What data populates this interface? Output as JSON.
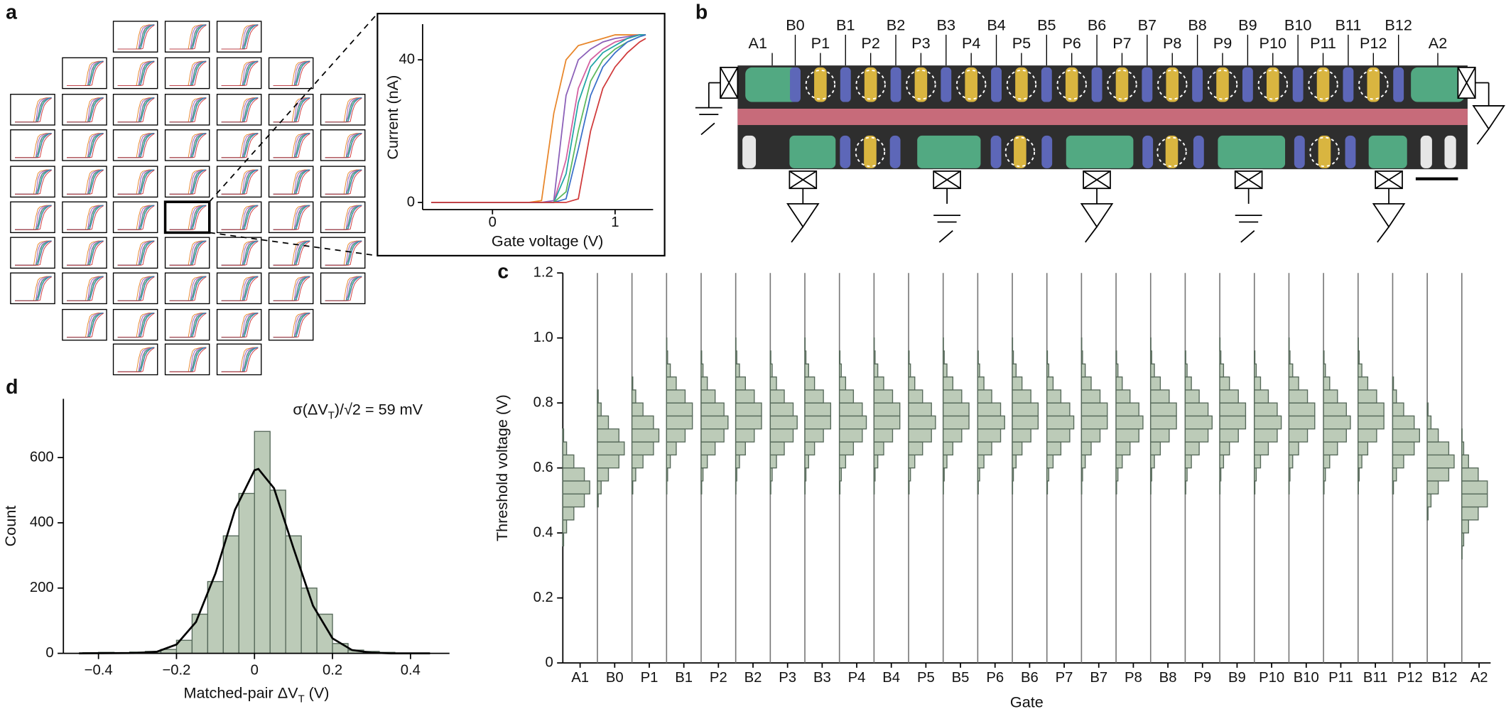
{
  "panel_labels": [
    "a",
    "b",
    "c",
    "d"
  ],
  "device": {
    "labels": [
      "A1",
      "B0",
      "P1",
      "B1",
      "P2",
      "B2",
      "P3",
      "B3",
      "P4",
      "B4",
      "P5",
      "B5",
      "P6",
      "B6",
      "P7",
      "B7",
      "P8",
      "B8",
      "P9",
      "B9",
      "P10",
      "B10",
      "P11",
      "B11",
      "P12",
      "B12",
      "A2"
    ]
  },
  "chart_data": [
    {
      "type": "line",
      "xlabel": "Gate voltage (V)",
      "ylabel": "Current (nA)",
      "x": [
        -0.5,
        0.3,
        0.4,
        0.5,
        0.6,
        0.7,
        0.8,
        0.9,
        1.0,
        1.1,
        1.2,
        1.25
      ],
      "series": [
        {
          "color": "#e8862a",
          "values": [
            0,
            0,
            0.5,
            25,
            40,
            44,
            45,
            46,
            47,
            47,
            47,
            47
          ]
        },
        {
          "color": "#8b5fb8",
          "values": [
            0,
            0,
            0,
            0.5,
            30,
            40,
            43,
            45,
            46,
            46.5,
            47,
            47
          ]
        },
        {
          "color": "#d45fa0",
          "values": [
            0,
            0,
            0,
            0,
            12,
            32,
            40,
            43,
            45,
            46,
            47,
            47
          ]
        },
        {
          "color": "#1fa5a5",
          "values": [
            0,
            0,
            0,
            0,
            8,
            28,
            38,
            42,
            44,
            46,
            47,
            47
          ]
        },
        {
          "color": "#5cb85c",
          "values": [
            0,
            0,
            0,
            0,
            3,
            20,
            34,
            40,
            43,
            45,
            46.5,
            47
          ]
        },
        {
          "color": "#3a6fc9",
          "values": [
            0,
            0,
            0,
            0,
            1,
            15,
            30,
            38,
            42,
            45,
            46.5,
            47
          ]
        },
        {
          "color": "#d0393a",
          "values": [
            0,
            0,
            0,
            0,
            0,
            1,
            20,
            32,
            38,
            42,
            45,
            46
          ]
        }
      ],
      "xlim": [
        -0.57,
        1.31
      ],
      "ylim": [
        -2,
        50
      ],
      "xticks": [
        0,
        1
      ],
      "yticks": [
        0,
        40
      ]
    },
    {
      "type": "histogram",
      "orientation": "horizontal",
      "xlabel": "Gate",
      "ylabel": "Threshold voltage (V)",
      "categories": [
        "A1",
        "B0",
        "P1",
        "B1",
        "P2",
        "B2",
        "P3",
        "B3",
        "P4",
        "B4",
        "P5",
        "B5",
        "P6",
        "B6",
        "P7",
        "B7",
        "P8",
        "B8",
        "P9",
        "B9",
        "P10",
        "B10",
        "P11",
        "B11",
        "P12",
        "B12",
        "A2"
      ],
      "bins": [
        0.32,
        0.36,
        0.4,
        0.44,
        0.48,
        0.52,
        0.56,
        0.6,
        0.64,
        0.68,
        0.72,
        0.76,
        0.8,
        0.84,
        0.88,
        0.92,
        0.96,
        1.0
      ],
      "counts": [
        [
          0,
          3,
          14,
          41,
          80,
          100,
          80,
          41,
          14,
          3,
          0,
          0,
          0,
          0,
          0,
          0,
          0
        ],
        [
          0,
          0,
          0,
          0,
          3,
          14,
          41,
          80,
          100,
          80,
          41,
          14,
          3,
          0,
          0,
          0,
          0
        ],
        [
          0,
          0,
          0,
          0,
          0,
          3,
          14,
          41,
          80,
          100,
          80,
          41,
          14,
          3,
          0,
          0,
          0
        ],
        [
          0,
          0,
          0,
          0,
          0,
          1,
          4,
          14,
          36,
          69,
          96,
          96,
          69,
          36,
          14,
          4,
          1
        ],
        [
          0,
          0,
          0,
          0,
          0,
          2,
          7,
          23,
          52,
          85,
          100,
          85,
          52,
          23,
          7,
          2,
          0
        ],
        [
          0,
          0,
          0,
          0,
          0,
          1,
          4,
          14,
          36,
          69,
          96,
          96,
          69,
          36,
          14,
          4,
          1
        ],
        [
          0,
          0,
          0,
          0,
          0,
          2,
          7,
          23,
          52,
          85,
          100,
          85,
          52,
          23,
          7,
          2,
          0
        ],
        [
          0,
          0,
          0,
          0,
          0,
          1,
          4,
          14,
          36,
          69,
          96,
          96,
          69,
          36,
          14,
          4,
          1
        ],
        [
          0,
          0,
          0,
          0,
          0,
          2,
          7,
          23,
          52,
          85,
          100,
          85,
          52,
          23,
          7,
          2,
          0
        ],
        [
          0,
          0,
          0,
          0,
          0,
          1,
          4,
          14,
          36,
          69,
          96,
          96,
          69,
          36,
          14,
          4,
          1
        ],
        [
          0,
          0,
          0,
          0,
          0,
          2,
          7,
          23,
          52,
          85,
          100,
          85,
          52,
          23,
          7,
          2,
          0
        ],
        [
          0,
          0,
          0,
          0,
          0,
          1,
          4,
          14,
          36,
          69,
          96,
          96,
          69,
          36,
          14,
          4,
          1
        ],
        [
          0,
          0,
          0,
          0,
          0,
          2,
          7,
          23,
          52,
          85,
          100,
          85,
          52,
          23,
          7,
          2,
          0
        ],
        [
          0,
          0,
          0,
          0,
          0,
          1,
          4,
          14,
          36,
          69,
          96,
          96,
          69,
          36,
          14,
          4,
          1
        ],
        [
          0,
          0,
          0,
          0,
          0,
          2,
          7,
          23,
          52,
          85,
          100,
          85,
          52,
          23,
          7,
          2,
          0
        ],
        [
          0,
          0,
          0,
          0,
          0,
          1,
          4,
          14,
          36,
          69,
          96,
          96,
          69,
          36,
          14,
          4,
          1
        ],
        [
          0,
          0,
          0,
          0,
          0,
          2,
          7,
          23,
          52,
          85,
          100,
          85,
          52,
          23,
          7,
          2,
          0
        ],
        [
          0,
          0,
          0,
          0,
          0,
          1,
          4,
          14,
          36,
          69,
          96,
          96,
          69,
          36,
          14,
          4,
          1
        ],
        [
          0,
          0,
          0,
          0,
          0,
          2,
          7,
          23,
          52,
          85,
          100,
          85,
          52,
          23,
          7,
          2,
          0
        ],
        [
          0,
          0,
          0,
          0,
          0,
          1,
          4,
          14,
          36,
          69,
          96,
          96,
          69,
          36,
          14,
          4,
          1
        ],
        [
          0,
          0,
          0,
          0,
          0,
          2,
          7,
          23,
          52,
          85,
          100,
          85,
          52,
          23,
          7,
          2,
          0
        ],
        [
          0,
          0,
          0,
          0,
          0,
          1,
          4,
          14,
          36,
          69,
          96,
          96,
          69,
          36,
          14,
          4,
          1
        ],
        [
          0,
          0,
          0,
          0,
          0,
          2,
          7,
          23,
          52,
          85,
          100,
          85,
          52,
          23,
          7,
          2,
          0
        ],
        [
          0,
          0,
          0,
          0,
          0,
          1,
          4,
          14,
          36,
          69,
          96,
          96,
          69,
          36,
          14,
          4,
          1
        ],
        [
          0,
          0,
          0,
          0,
          0,
          3,
          14,
          41,
          80,
          100,
          80,
          41,
          14,
          3,
          0,
          0,
          0
        ],
        [
          0,
          0,
          0,
          3,
          14,
          41,
          80,
          100,
          80,
          41,
          14,
          3,
          0,
          0,
          0,
          0,
          0
        ],
        [
          1,
          7,
          25,
          61,
          95,
          95,
          61,
          25,
          7,
          1,
          0,
          0,
          0,
          0,
          0,
          0,
          0
        ]
      ],
      "color": "#bccbb8",
      "edgecolor": "#56695a",
      "ylim": [
        0,
        1.2
      ],
      "yticks": [
        0,
        0.2,
        0.4,
        0.6,
        0.8,
        {
          "value": 1,
          "label": "1.0"
        },
        1.2
      ]
    },
    {
      "type": "histogram",
      "orientation": "vertical",
      "ylabel": "Count",
      "xlabel": [
        "Matched-pair ΔV",
        "T",
        " (V)"
      ],
      "annotation": [
        "σ(ΔV",
        "T",
        ")/√2 = 59 mV"
      ],
      "bins": [
        -0.44,
        -0.4,
        -0.36,
        -0.32,
        -0.28,
        -0.24,
        -0.2,
        -0.16,
        -0.12,
        -0.08,
        -0.04,
        0,
        0.04,
        0.08,
        0.12,
        0.16,
        0.2,
        0.24,
        0.28,
        0.32,
        0.36
      ],
      "values": [
        2,
        3,
        2,
        4,
        6,
        12,
        40,
        120,
        220,
        360,
        490,
        680,
        500,
        360,
        200,
        120,
        30,
        10,
        6,
        3
      ],
      "fit": {
        "x": [
          -0.45,
          -0.3,
          -0.25,
          -0.2,
          -0.15,
          -0.1,
          -0.05,
          0,
          0.01,
          0.05,
          0.1,
          0.15,
          0.2,
          0.25,
          0.3,
          0.35,
          0.45
        ],
        "values": [
          0,
          1,
          5,
          27,
          96,
          245,
          440,
          561,
          565,
          506,
          322,
          146,
          46,
          10,
          2,
          0,
          0
        ],
        "color": "#000000"
      },
      "color": "#bccbb8",
      "edgecolor": "#56695a",
      "xlim": [
        -0.49,
        0.5
      ],
      "ylim": [
        0,
        780
      ],
      "xticks": [
        {
          "value": -0.4,
          "label": "−0.4"
        },
        {
          "value": -0.2,
          "label": "−0.2"
        },
        0,
        0.2,
        0.4
      ],
      "yticks": [
        0,
        200,
        400,
        600
      ]
    }
  ]
}
